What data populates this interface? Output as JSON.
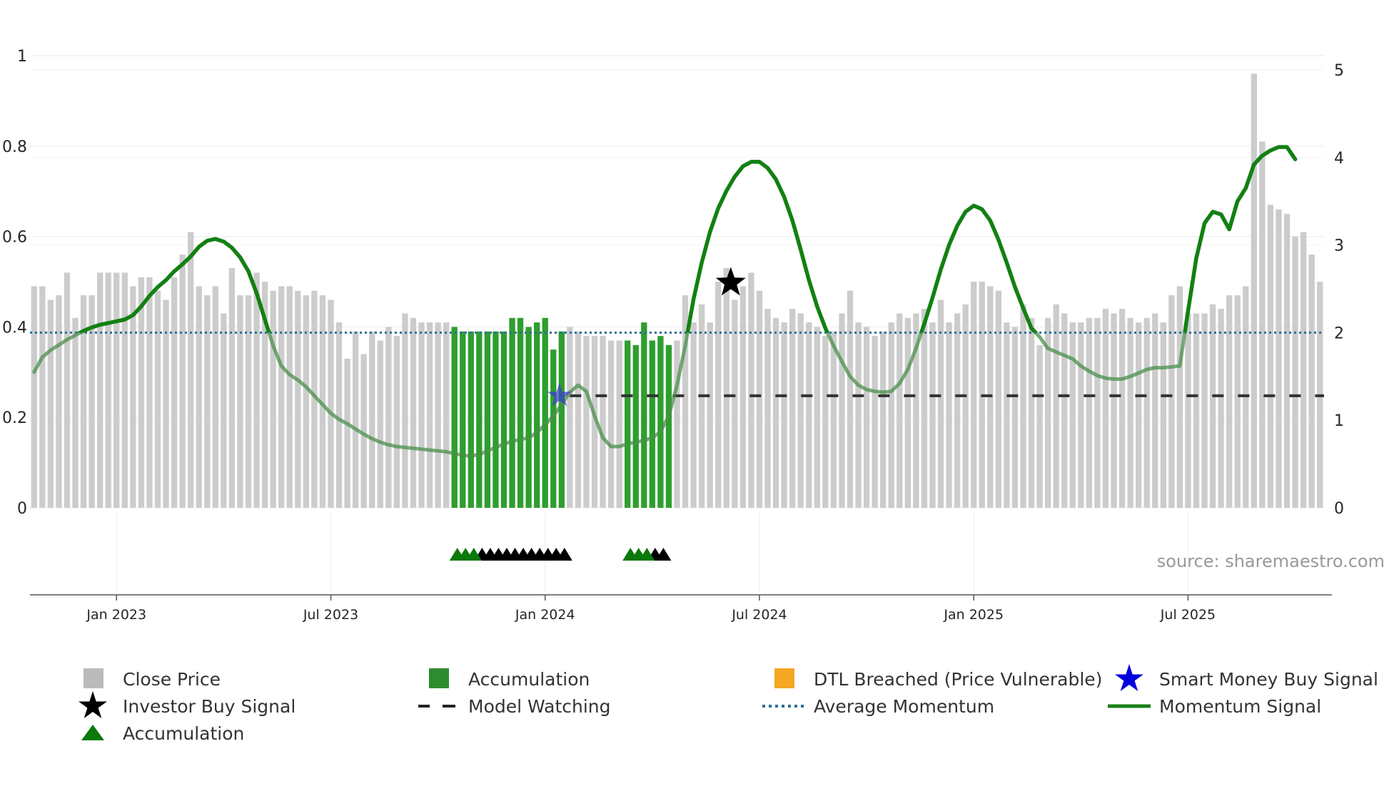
{
  "chart_data": {
    "type": "bar",
    "title": "",
    "source": "source: sharemaestro.com",
    "left_axis": {
      "ylim": [
        0,
        1
      ],
      "ticks": [
        0,
        0.2,
        0.4,
        0.6,
        0.8,
        1
      ],
      "tick_labels": [
        "0",
        "0.2",
        "0.4",
        "0.6",
        "0.8",
        "1"
      ]
    },
    "right_axis": {
      "ylim": [
        0,
        5
      ],
      "ticks": [
        0,
        1,
        2,
        3,
        4,
        5
      ],
      "tick_labels": [
        "0",
        "1",
        "2",
        "3",
        "4",
        "5"
      ]
    },
    "x_ticks": [
      {
        "label": "Jan 2023",
        "index": 10
      },
      {
        "label": "Jul 2023",
        "index": 36
      },
      {
        "label": "Jan 2024",
        "index": 62
      },
      {
        "label": "Jul 2024",
        "index": 88
      },
      {
        "label": "Jan 2025",
        "index": 114
      },
      {
        "label": "Jul 2025",
        "index": 140
      }
    ],
    "close_price": [
      0.49,
      0.49,
      0.46,
      0.47,
      0.52,
      0.42,
      0.47,
      0.47,
      0.52,
      0.52,
      0.52,
      0.52,
      0.49,
      0.51,
      0.51,
      0.48,
      0.46,
      0.51,
      0.56,
      0.61,
      0.49,
      0.47,
      0.49,
      0.43,
      0.53,
      0.47,
      0.47,
      0.52,
      0.5,
      0.48,
      0.49,
      0.49,
      0.48,
      0.47,
      0.48,
      0.47,
      0.46,
      0.41,
      0.33,
      0.39,
      0.34,
      0.39,
      0.37,
      0.4,
      0.38,
      0.43,
      0.42,
      0.41,
      0.41,
      0.41,
      0.41,
      0.4,
      0.39,
      0.39,
      0.39,
      0.39,
      0.39,
      0.39,
      0.42,
      0.42,
      0.4,
      0.41,
      0.42,
      0.35,
      0.39,
      0.4,
      0.39,
      0.38,
      0.38,
      0.38,
      0.37,
      0.37,
      0.37,
      0.36,
      0.41,
      0.37,
      0.38,
      0.36,
      0.37,
      0.47,
      0.41,
      0.45,
      0.41,
      0.5,
      0.53,
      0.46,
      0.49,
      0.52,
      0.48,
      0.44,
      0.42,
      0.41,
      0.44,
      0.43,
      0.41,
      0.4,
      0.38,
      0.39,
      0.43,
      0.48,
      0.41,
      0.4,
      0.38,
      0.39,
      0.41,
      0.43,
      0.42,
      0.43,
      0.44,
      0.41,
      0.46,
      0.41,
      0.43,
      0.45,
      0.5,
      0.5,
      0.49,
      0.48,
      0.41,
      0.4,
      0.45,
      0.42,
      0.36,
      0.42,
      0.45,
      0.43,
      0.41,
      0.41,
      0.42,
      0.42,
      0.44,
      0.43,
      0.44,
      0.42,
      0.41,
      0.42,
      0.43,
      0.41,
      0.47,
      0.49,
      0.43,
      0.43,
      0.43,
      0.45,
      0.44,
      0.47,
      0.47,
      0.49,
      0.96,
      0.81,
      0.67,
      0.66,
      0.65,
      0.6,
      0.61,
      0.56,
      0.5
    ],
    "accumulation_bars": [
      51,
      52,
      53,
      54,
      55,
      56,
      57,
      58,
      59,
      60,
      61,
      62,
      63,
      64,
      72,
      73,
      74,
      75,
      76,
      77
    ],
    "momentum_signal": [
      1.55,
      1.72,
      1.8,
      1.86,
      1.92,
      1.97,
      2.02,
      2.06,
      2.09,
      2.11,
      2.13,
      2.15,
      2.2,
      2.3,
      2.42,
      2.52,
      2.6,
      2.7,
      2.78,
      2.87,
      2.98,
      3.05,
      3.07,
      3.04,
      2.97,
      2.86,
      2.7,
      2.45,
      2.15,
      1.85,
      1.62,
      1.52,
      1.46,
      1.38,
      1.28,
      1.18,
      1.08,
      1.01,
      0.96,
      0.9,
      0.84,
      0.79,
      0.75,
      0.72,
      0.7,
      0.69,
      0.68,
      0.67,
      0.66,
      0.65,
      0.64,
      0.62,
      0.6,
      0.59,
      0.61,
      0.65,
      0.69,
      0.73,
      0.76,
      0.78,
      0.8,
      0.86,
      0.95,
      1.05,
      1.18,
      1.32,
      1.4,
      1.33,
      1.05,
      0.8,
      0.7,
      0.7,
      0.73,
      0.75,
      0.77,
      0.8,
      0.87,
      1.05,
      1.4,
      1.85,
      2.38,
      2.8,
      3.15,
      3.42,
      3.62,
      3.78,
      3.9,
      3.95,
      3.95,
      3.88,
      3.75,
      3.55,
      3.28,
      2.95,
      2.6,
      2.3,
      2.05,
      1.85,
      1.67,
      1.5,
      1.4,
      1.35,
      1.33,
      1.32,
      1.33,
      1.42,
      1.58,
      1.82,
      2.1,
      2.4,
      2.72,
      3.0,
      3.22,
      3.38,
      3.45,
      3.41,
      3.28,
      3.06,
      2.8,
      2.52,
      2.28,
      2.05,
      1.95,
      1.82,
      1.78,
      1.74,
      1.7,
      1.62,
      1.56,
      1.51,
      1.48,
      1.47,
      1.47,
      1.5,
      1.54,
      1.58,
      1.6,
      1.6,
      1.61,
      1.62,
      2.25,
      2.85,
      3.25,
      3.38,
      3.35,
      3.18,
      3.5,
      3.65,
      3.92,
      4.02,
      4.08,
      4.12,
      4.12,
      3.98
    ],
    "average_momentum": 2.0,
    "model_watching": {
      "start_index": 65,
      "value": 1.28
    },
    "investor_buy_signal": {
      "index": 84,
      "value": 2.57
    },
    "smart_money_buy_signal": {
      "index": 64,
      "value": 1.28
    },
    "accumulation_markers": [
      51,
      52,
      53,
      72,
      73,
      74
    ],
    "other_markers": [
      54,
      55,
      56,
      57,
      58,
      59,
      60,
      61,
      62,
      63,
      64,
      75,
      76
    ],
    "legend": [
      {
        "label": "Close Price",
        "symbol": "square",
        "color": "#bbbbbb"
      },
      {
        "label": "Accumulation",
        "symbol": "square",
        "color": "#2e8b2e"
      },
      {
        "label": "DTL Breached (Price Vulnerable)",
        "symbol": "square",
        "color": "#f5a623"
      },
      {
        "label": "Smart Money Buy Signal",
        "symbol": "star",
        "color": "#0000dd"
      },
      {
        "label": "Investor Buy Signal",
        "symbol": "star",
        "color": "#000000"
      },
      {
        "label": "Model Watching",
        "symbol": "dash",
        "color": "#222222"
      },
      {
        "label": "Average Momentum",
        "symbol": "dotted",
        "color": "#2a6f97"
      },
      {
        "label": "Momentum Signal",
        "symbol": "line",
        "color": "#1a801a"
      },
      {
        "label": "Accumulation",
        "symbol": "triangle",
        "color": "#0a7a0a"
      }
    ]
  }
}
